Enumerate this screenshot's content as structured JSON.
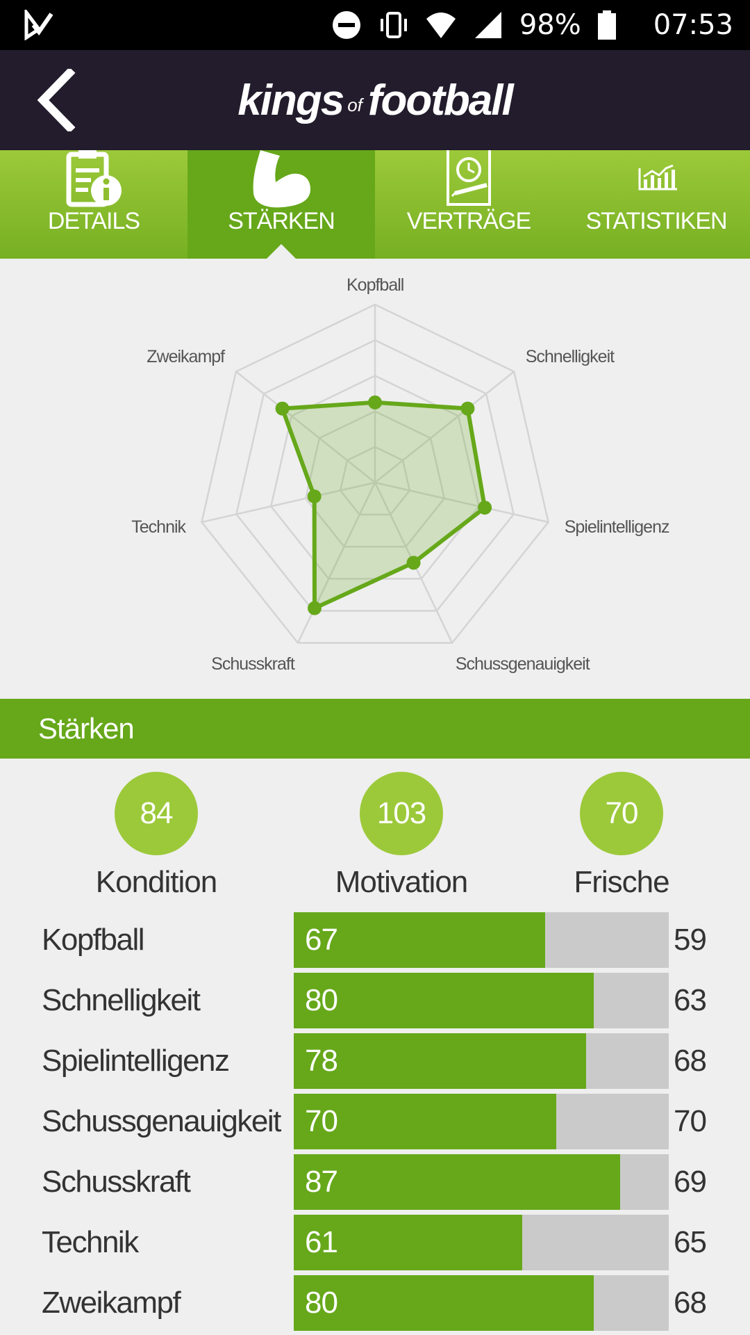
{
  "status_bar": {
    "battery": "98%",
    "time": "07:53",
    "icons": [
      "app-notification-icon",
      "do-not-disturb-icon",
      "vibrate-icon",
      "wifi-icon",
      "cell-signal-icon",
      "battery-icon"
    ]
  },
  "header": {
    "logo_kings": "kings",
    "logo_of": "of",
    "logo_football": "football"
  },
  "tabs": [
    {
      "label": "DETAILS",
      "icon": "clipboard-info-icon",
      "active": false
    },
    {
      "label": "STÄRKEN",
      "icon": "flexed-arm-icon",
      "active": true
    },
    {
      "label": "VERTRÄGE",
      "icon": "contract-clock-icon",
      "active": false
    },
    {
      "label": "STATISTIKEN",
      "icon": "bar-chart-icon",
      "active": false
    }
  ],
  "colors": {
    "accent": "#66a81a",
    "accent_light": "#9cc93a",
    "header_bg": "#221c2c",
    "track": "#cacaca"
  },
  "chart_data": {
    "type": "radar",
    "axes": [
      "Kopfball",
      "Schnelligkeit",
      "Spielintelligenz",
      "Schussgenauigkeit",
      "Schusskraft",
      "Technik",
      "Zweikampf"
    ],
    "values": [
      67,
      80,
      78,
      70,
      87,
      61,
      80
    ],
    "range": [
      40,
      100
    ],
    "grid_levels": 5,
    "fill_color": "#66a81a"
  },
  "section": {
    "title": "Stärken"
  },
  "summary": [
    {
      "value": "84",
      "label": "Kondition"
    },
    {
      "value": "103",
      "label": "Motivation"
    },
    {
      "value": "70",
      "label": "Frische"
    }
  ],
  "stats": [
    {
      "name": "Kopfball",
      "value": 67,
      "compare": 59
    },
    {
      "name": "Schnelligkeit",
      "value": 80,
      "compare": 63
    },
    {
      "name": "Spielintelligenz",
      "value": 78,
      "compare": 68
    },
    {
      "name": "Schussgenauigkeit",
      "value": 70,
      "compare": 70
    },
    {
      "name": "Schusskraft",
      "value": 87,
      "compare": 69
    },
    {
      "name": "Technik",
      "value": 61,
      "compare": 65
    },
    {
      "name": "Zweikampf",
      "value": 80,
      "compare": 68
    }
  ],
  "stat_scale_max": 100
}
